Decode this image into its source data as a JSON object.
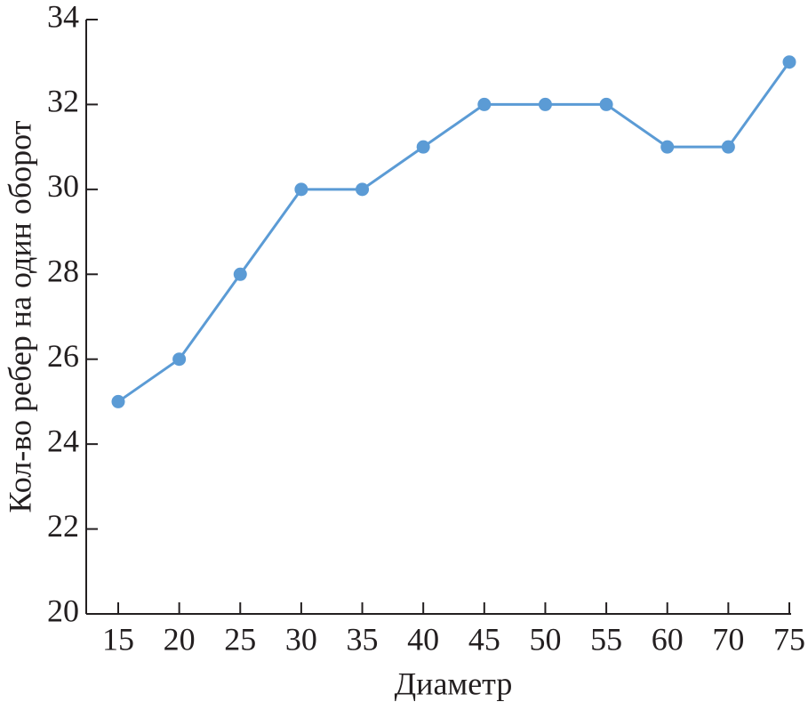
{
  "chart_data": {
    "type": "line",
    "x_label": "Диаметр",
    "y_label": "Кол-во ребер на один оборот",
    "categories": [
      15,
      20,
      25,
      30,
      35,
      40,
      45,
      50,
      55,
      60,
      70,
      75
    ],
    "values": [
      25,
      26,
      28,
      30,
      30,
      31,
      32,
      32,
      32,
      31,
      31,
      33
    ],
    "color": "#5b9bd5",
    "ylim": [
      20,
      34
    ],
    "yticks": [
      20,
      22,
      24,
      26,
      28,
      30,
      32,
      34
    ],
    "grid": false
  }
}
